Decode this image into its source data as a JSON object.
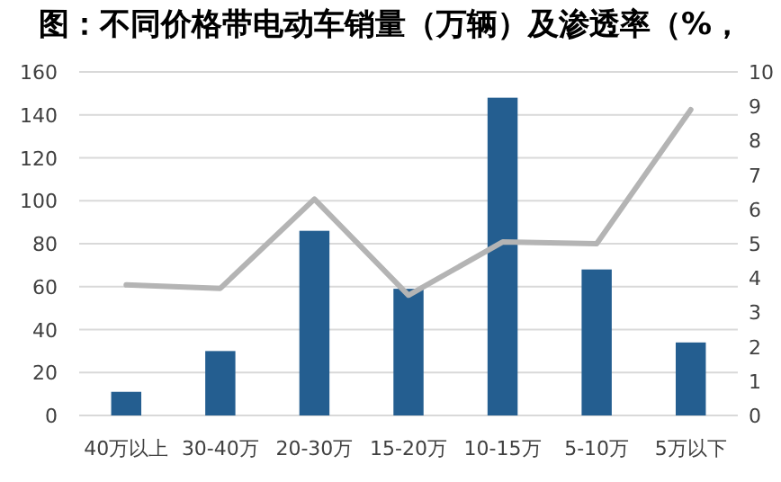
{
  "chart_data": {
    "type": "bar",
    "title": "图：不同价格带电动车销量（万辆）及渗透率（%，",
    "categories": [
      "40万以上",
      "30-40万",
      "20-30万",
      "15-20万",
      "10-15万",
      "5-10万",
      "5万以下"
    ],
    "series": [
      {
        "color": "#245e90",
        "values": [
          11,
          30,
          86,
          59,
          148,
          68,
          34
        ]
      },
      {
        "type": "line",
        "axis": "y2",
        "color": "#b4b4b4",
        "values": [
          3.8,
          3.7,
          6.3,
          3.5,
          5.05,
          5.0,
          8.9
        ]
      }
    ],
    "ylim": [
      0,
      160
    ],
    "yticks": [
      0,
      20,
      40,
      60,
      80,
      100,
      120,
      140,
      160
    ],
    "y2lim": [
      0,
      10
    ],
    "y2ticks": [
      0,
      1,
      2,
      3,
      4,
      5,
      6,
      7,
      8,
      9,
      10
    ],
    "grid": "y"
  }
}
